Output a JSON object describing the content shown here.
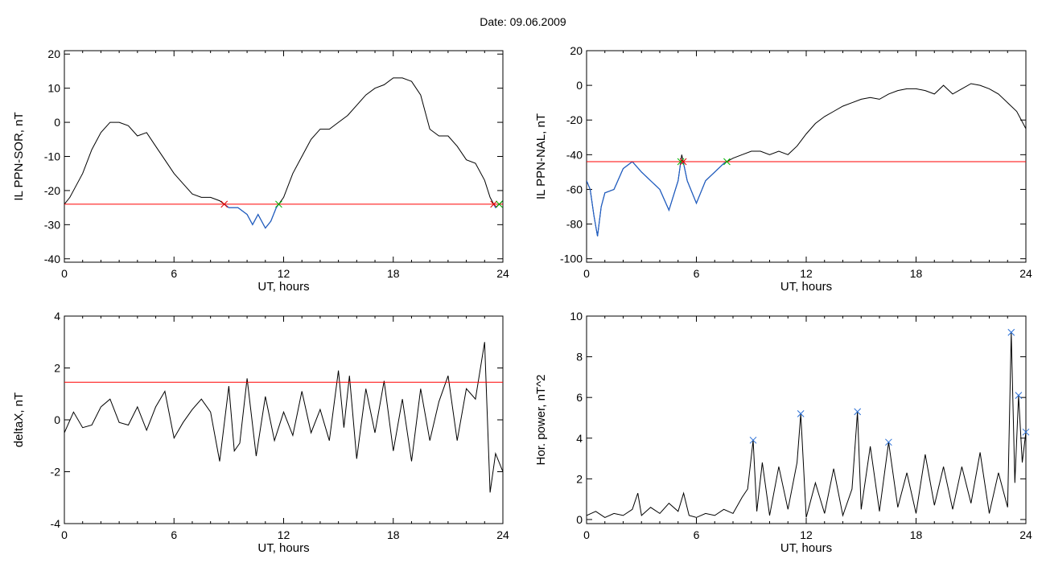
{
  "header": {
    "title": "Date:  09.06.2009"
  },
  "colors": {
    "trace": "#000000",
    "threshold": "#ff0000",
    "below": "#1f5fc8",
    "marker_red": "#e00000",
    "marker_green": "#00b400",
    "marker_blue": "#2a6fd6"
  },
  "chart_data": [
    {
      "type": "line",
      "ylabel": "IL PPN-SOR, nT",
      "xlabel": "UT, hours",
      "xlim": [
        0,
        24
      ],
      "ylim": [
        -41,
        21
      ],
      "xticks": [
        0,
        6,
        12,
        18,
        24
      ],
      "yticks": [
        -40,
        -30,
        -20,
        -10,
        0,
        10,
        20
      ],
      "threshold": -24,
      "series": [
        {
          "x": [
            0,
            0.3,
            0.6,
            1,
            1.5,
            2,
            2.5,
            3,
            3.5,
            4,
            4.5,
            5,
            5.5,
            6,
            6.5,
            7,
            7.5,
            8,
            8.5,
            9,
            9.5,
            10,
            10.3,
            10.6,
            11,
            11.3,
            11.6,
            12,
            12.5,
            13,
            13.5,
            14,
            14.5,
            15,
            15.5,
            16,
            16.5,
            17,
            17.5,
            18,
            18.5,
            19,
            19.5,
            20,
            20.5,
            21,
            21.5,
            22,
            22.5,
            23,
            23.3,
            23.6,
            24
          ],
          "y": [
            -24,
            -22,
            -19,
            -15,
            -8,
            -3,
            0,
            0,
            -1,
            -4,
            -3,
            -7,
            -11,
            -15,
            -18,
            -21,
            -22,
            -22,
            -23,
            -25,
            -25,
            -27,
            -30,
            -27,
            -31,
            -29,
            -25,
            -22,
            -15,
            -10,
            -5,
            -2,
            -2,
            0,
            2,
            5,
            8,
            10,
            11,
            13,
            13,
            12,
            8,
            -2,
            -4,
            -4,
            -7,
            -11,
            -12,
            -17,
            -22,
            -25,
            -23
          ]
        }
      ]
    },
    {
      "type": "line",
      "ylabel": "IL PPN-NAL, nT",
      "xlabel": "UT, hours",
      "xlim": [
        0,
        24
      ],
      "ylim": [
        -102,
        20
      ],
      "xticks": [
        0,
        6,
        12,
        18,
        24
      ],
      "yticks": [
        -100,
        -80,
        -60,
        -40,
        -20,
        0,
        20
      ],
      "threshold": -44,
      "series": [
        {
          "x": [
            0,
            0.2,
            0.4,
            0.6,
            0.8,
            1,
            1.5,
            2,
            2.5,
            3,
            3.5,
            4,
            4.5,
            5,
            5.2,
            5.5,
            6,
            6.5,
            7,
            7.5,
            8,
            8.5,
            9,
            9.5,
            10,
            10.5,
            11,
            11.5,
            12,
            12.5,
            13,
            13.5,
            14,
            14.5,
            15,
            15.5,
            16,
            16.5,
            17,
            17.5,
            18,
            18.5,
            19,
            19.5,
            20,
            20.5,
            21,
            21.5,
            22,
            22.5,
            23,
            23.5,
            24
          ],
          "y": [
            -55,
            -60,
            -75,
            -87,
            -70,
            -62,
            -60,
            -48,
            -44,
            -50,
            -55,
            -60,
            -72,
            -55,
            -40,
            -55,
            -68,
            -55,
            -50,
            -45,
            -42,
            -40,
            -38,
            -38,
            -40,
            -38,
            -40,
            -35,
            -28,
            -22,
            -18,
            -15,
            -12,
            -10,
            -8,
            -7,
            -8,
            -5,
            -3,
            -2,
            -2,
            -3,
            -5,
            0,
            -5,
            -2,
            1,
            0,
            -2,
            -5,
            -10,
            -15,
            -25
          ]
        }
      ]
    },
    {
      "type": "line",
      "ylabel": "deltaX, nT",
      "xlabel": "UT, hours",
      "xlim": [
        0,
        24
      ],
      "ylim": [
        -4,
        4
      ],
      "xticks": [
        0,
        6,
        12,
        18,
        24
      ],
      "yticks": [
        -4,
        -2,
        0,
        2,
        4
      ],
      "threshold": 1.45,
      "series": [
        {
          "x": [
            0,
            0.5,
            1,
            1.5,
            2,
            2.5,
            3,
            3.5,
            4,
            4.5,
            5,
            5.5,
            6,
            6.5,
            7,
            7.5,
            8,
            8.5,
            9,
            9.3,
            9.6,
            10,
            10.5,
            11,
            11.5,
            12,
            12.5,
            13,
            13.5,
            14,
            14.5,
            15,
            15.3,
            15.6,
            16,
            16.5,
            17,
            17.5,
            18,
            18.5,
            19,
            19.5,
            20,
            20.5,
            21,
            21.5,
            22,
            22.5,
            23,
            23.3,
            23.6,
            24
          ],
          "y": [
            -0.5,
            0.3,
            -0.3,
            -0.2,
            0.5,
            0.8,
            -0.1,
            -0.2,
            0.5,
            -0.4,
            0.5,
            1.1,
            -0.7,
            -0.1,
            0.4,
            0.8,
            0.3,
            -1.6,
            1.3,
            -1.2,
            -0.9,
            1.6,
            -1.4,
            0.9,
            -0.8,
            0.3,
            -0.6,
            1.1,
            -0.5,
            0.4,
            -0.8,
            1.9,
            -0.3,
            1.7,
            -1.5,
            1.2,
            -0.5,
            1.5,
            -1.2,
            0.8,
            -1.6,
            1.2,
            -0.8,
            0.7,
            1.7,
            -0.8,
            1.2,
            0.8,
            3.0,
            -2.8,
            -1.3,
            -2.0
          ]
        }
      ]
    },
    {
      "type": "line",
      "ylabel": "Hor. power, nT^2",
      "xlabel": "UT, hours",
      "xlim": [
        0,
        24
      ],
      "ylim": [
        -0.2,
        10
      ],
      "xticks": [
        0,
        6,
        12,
        18,
        24
      ],
      "yticks": [
        0,
        2,
        4,
        6,
        8,
        10
      ],
      "series": [
        {
          "x": [
            0,
            0.5,
            1,
            1.5,
            2,
            2.5,
            2.8,
            3,
            3.5,
            4,
            4.5,
            5,
            5.3,
            5.6,
            6,
            6.5,
            7,
            7.5,
            8,
            8.5,
            8.8,
            9.1,
            9.3,
            9.6,
            10,
            10.5,
            11,
            11.5,
            11.7,
            12,
            12.5,
            13,
            13.5,
            14,
            14.5,
            14.8,
            15,
            15.5,
            16,
            16.5,
            17,
            17.5,
            18,
            18.5,
            19,
            19.5,
            20,
            20.5,
            21,
            21.5,
            22,
            22.5,
            23,
            23.2,
            23.4,
            23.6,
            23.8,
            24
          ],
          "y": [
            0.2,
            0.4,
            0.1,
            0.3,
            0.2,
            0.5,
            1.3,
            0.2,
            0.6,
            0.3,
            0.8,
            0.4,
            1.3,
            0.2,
            0.1,
            0.3,
            0.2,
            0.5,
            0.3,
            1.1,
            1.5,
            3.9,
            0.4,
            2.8,
            0.2,
            2.6,
            0.5,
            2.8,
            5.2,
            0.1,
            1.8,
            0.3,
            2.5,
            0.2,
            1.5,
            5.3,
            0.5,
            3.6,
            0.4,
            3.8,
            0.6,
            2.3,
            0.3,
            3.2,
            0.7,
            2.6,
            0.5,
            2.6,
            0.8,
            3.3,
            0.3,
            2.3,
            0.6,
            9.2,
            1.8,
            6.1,
            2.8,
            4.3
          ]
        }
      ]
    }
  ]
}
